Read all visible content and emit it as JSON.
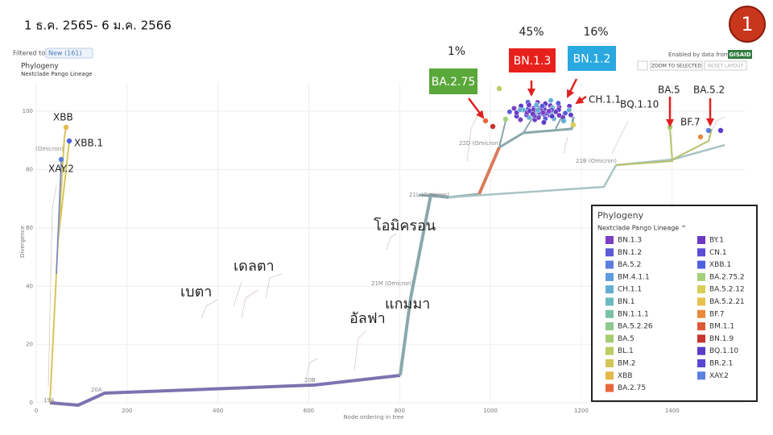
{
  "header": {
    "date_range": "1 ธ.ค. 2565- 6 ม.ค. 2566",
    "slide_number": "1"
  },
  "toolbar": {
    "filter_label": "Filtered to",
    "filter_chip": "New (161)",
    "panel_title": "Phylogeny",
    "color_by": "Nextclade Pango Lineage",
    "attribution": "Enabled by data from",
    "attribution_brand": "GISAID",
    "buttons": [
      "ZOOM TO SELECTED",
      "RESET LAYOUT"
    ]
  },
  "axes": {
    "x_label": "Node ordering in tree",
    "y_label": "Divergence",
    "xlim": [
      0,
      1560
    ],
    "ylim": [
      0,
      110
    ],
    "xticks": [
      0,
      200,
      400,
      600,
      800,
      1000,
      1200,
      1400
    ],
    "yticks": [
      0,
      20,
      40,
      60,
      80,
      100
    ]
  },
  "callouts": [
    {
      "label": "BA.2.75",
      "percent": "1%",
      "color": "#5aa83a"
    },
    {
      "label": "BN.1.3",
      "percent": "45%",
      "color": "#e8201c"
    },
    {
      "label": "BN.1.2",
      "percent": "16%",
      "color": "#2aa8e0"
    }
  ],
  "clade_labels": [
    "19A",
    "20A",
    "20B",
    "21M (Omicron)",
    "21L (Omicron)",
    "22D (Omicron)",
    "22B (Omicron)",
    "(Omicron)"
  ],
  "lineage_labels": [
    "XBB",
    "XBB.1",
    "XAY.2",
    "CH.1.1",
    "BQ.1.10",
    "BA.5",
    "BA.5.2",
    "BF.7"
  ],
  "variant_labels": [
    "โอมิครอน",
    "เดลตา",
    "เบตา",
    "แกมมา",
    "อัลฟา"
  ],
  "legend": {
    "title": "Phylogeny",
    "subtitle": "Nextclade Pango Lineage ^",
    "entries": [
      {
        "name": "BN.1.3",
        "color": "#7b3fc4"
      },
      {
        "name": "BN.1.2",
        "color": "#5a5bd8"
      },
      {
        "name": "BA.5.2",
        "color": "#5b7de0"
      },
      {
        "name": "BM.4.1.1",
        "color": "#5f9be0"
      },
      {
        "name": "CH.1.1",
        "color": "#65aed2"
      },
      {
        "name": "BN.1",
        "color": "#6cbac0"
      },
      {
        "name": "BN.1.1.1",
        "color": "#79c2a6"
      },
      {
        "name": "BA.5.2.26",
        "color": "#8ec98b"
      },
      {
        "name": "BA.5",
        "color": "#a4cc73"
      },
      {
        "name": "BL.1",
        "color": "#bccb62"
      },
      {
        "name": "BM.2",
        "color": "#d3c557"
      },
      {
        "name": "XBB",
        "color": "#e3b94d"
      },
      {
        "name": "BA.2.75",
        "color": "#e8683b"
      },
      {
        "name": "BY.1",
        "color": "#6a3ac0"
      },
      {
        "name": "CN.1",
        "color": "#5b4dd6"
      },
      {
        "name": "XBB.1",
        "color": "#4e62e0"
      },
      {
        "name": "BA.2.75.2",
        "color": "#a5d07a"
      },
      {
        "name": "BA.5.2.12",
        "color": "#d8cf55"
      },
      {
        "name": "BA.5.2.21",
        "color": "#e6c04b"
      },
      {
        "name": "BF.7",
        "color": "#e98a3c"
      },
      {
        "name": "BM.1.1",
        "color": "#dd5a34"
      },
      {
        "name": "BN.1.9",
        "color": "#c8342e"
      },
      {
        "name": "BQ.1.10",
        "color": "#5b3dc8"
      },
      {
        "name": "BR.2.1",
        "color": "#5a46d2"
      },
      {
        "name": "XAY.2",
        "color": "#5b80e0"
      }
    ]
  }
}
